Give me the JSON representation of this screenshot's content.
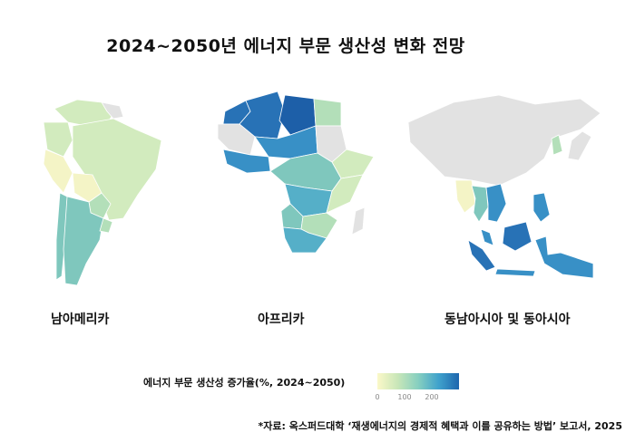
{
  "title": "2024~2050년 에너지 부문 생산성 변화 전망",
  "regions": {
    "south_america": {
      "label": "남아메리카"
    },
    "africa": {
      "label": "아프리카"
    },
    "asia": {
      "label": "동남아시아 및 동아시아"
    }
  },
  "legend": {
    "title": "에너지 부문 생산성 증가율(%, 2024~2050)",
    "ticks": [
      "0",
      "100",
      "200"
    ],
    "tick_values": [
      0,
      100,
      200
    ],
    "max": 300,
    "colors": [
      "#fbf8c8",
      "#c8e6b8",
      "#86cfc0",
      "#3fa2cc",
      "#1e66ae"
    ]
  },
  "source": "*자료: 옥스퍼드대학 ‘재생에너지의 경제적 혜택과 이를 공유하는 방법’ 보고서, 2025",
  "palette": {
    "no_data": "#e2e2e2",
    "low": "#f4f4c6",
    "light": "#d2ebbe",
    "mid_light": "#b3dfb9",
    "mid": "#7fc7bd",
    "mid_dark": "#55afc8",
    "dark": "#3890c6",
    "darker": "#2872b6",
    "darkest": "#1d5fa8"
  }
}
